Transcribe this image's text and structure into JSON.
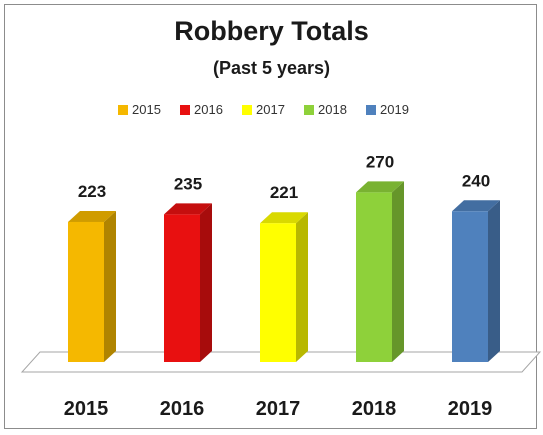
{
  "chart_data": {
    "type": "bar",
    "title": "Robbery Totals",
    "subtitle": "(Past 5 years)",
    "categories": [
      "2015",
      "2016",
      "2017",
      "2018",
      "2019"
    ],
    "values": [
      223,
      235,
      221,
      270,
      240
    ],
    "legend": {
      "position": "top",
      "entries": [
        "2015",
        "2016",
        "2017",
        "2018",
        "2019"
      ]
    },
    "colors": [
      "#f5b800",
      "#e81010",
      "#ffff00",
      "#8ed13a",
      "#4f81bd"
    ],
    "style": "3d-column",
    "grid": false,
    "ylim": [
      0,
      300
    ]
  }
}
